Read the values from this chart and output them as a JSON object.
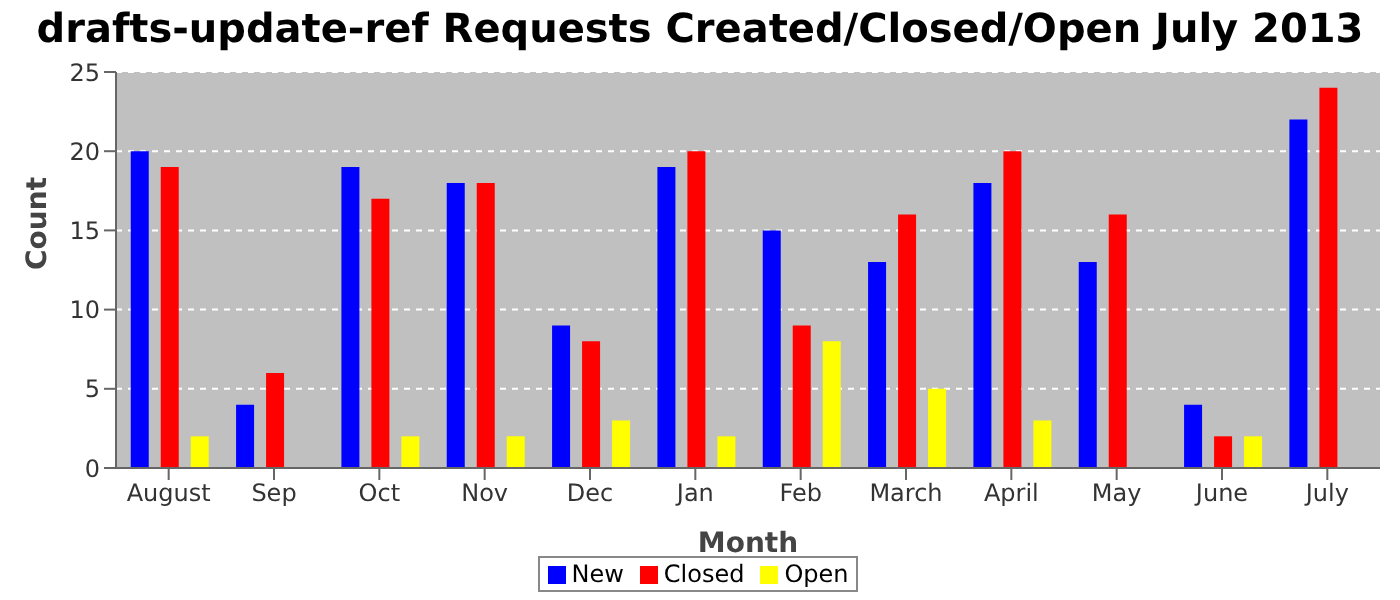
{
  "chart_data": {
    "type": "bar",
    "title": "drafts-update-ref Requests Created/Closed/Open July 2013",
    "xlabel": "Month",
    "ylabel": "Count",
    "categories": [
      "August",
      "Sep",
      "Oct",
      "Nov",
      "Dec",
      "Jan",
      "Feb",
      "March",
      "April",
      "May",
      "June",
      "July"
    ],
    "series": [
      {
        "name": "New",
        "color": "#0000ff",
        "values": [
          20,
          4,
          19,
          18,
          9,
          19,
          15,
          13,
          18,
          13,
          4,
          22
        ]
      },
      {
        "name": "Closed",
        "color": "#ff0000",
        "values": [
          19,
          6,
          17,
          18,
          8,
          20,
          9,
          16,
          20,
          16,
          2,
          24
        ]
      },
      {
        "name": "Open",
        "color": "#ffff00",
        "values": [
          2,
          0,
          2,
          2,
          3,
          2,
          8,
          5,
          3,
          0,
          2,
          0
        ]
      }
    ],
    "ylim": [
      0,
      25
    ],
    "yticks": [
      0,
      5,
      10,
      15,
      20,
      25
    ],
    "grid": "y",
    "legend": "bottom"
  }
}
